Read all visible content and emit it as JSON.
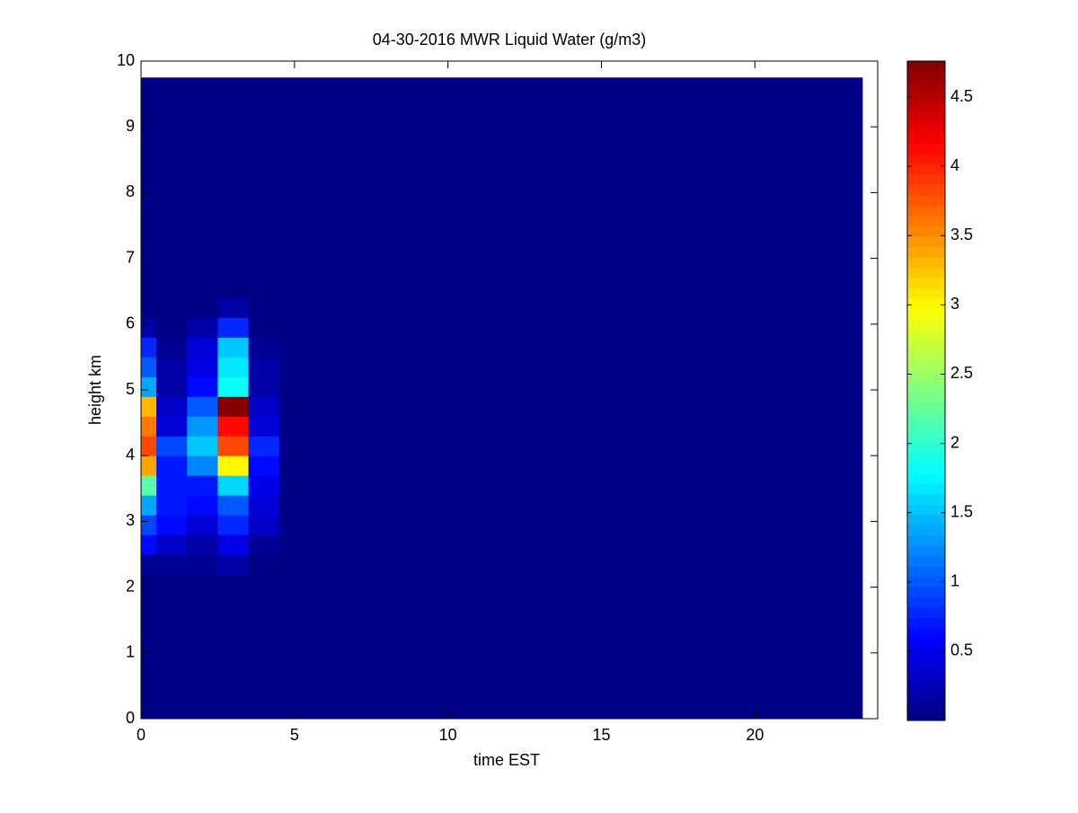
{
  "chart_data": {
    "type": "heatmap",
    "title": "04-30-2016 MWR Liquid Water (g/m3)",
    "x_label": "time EST",
    "y_label": "height km",
    "x_bins": [
      0,
      0.5,
      1.5,
      2.5,
      3.5,
      4.5,
      23.5
    ],
    "y_bins": [
      0,
      2.2,
      2.5,
      2.8,
      3.1,
      3.4,
      3.7,
      4.0,
      4.3,
      4.6,
      4.9,
      5.2,
      5.5,
      5.8,
      6.1,
      6.4,
      9.75
    ],
    "z": [
      [
        0,
        0.1,
        0.6,
        0.9,
        1.4,
        2.2,
        3.4,
        3.8,
        3.6,
        3.3,
        1.4,
        1.0,
        0.8,
        0.2,
        0,
        0
      ],
      [
        0,
        0.1,
        0.3,
        0.6,
        0.7,
        0.7,
        0.7,
        0.9,
        0.4,
        0.3,
        0.2,
        0.2,
        0.1,
        0.05,
        0,
        0
      ],
      [
        0,
        0.1,
        0.2,
        0.4,
        0.6,
        0.7,
        1.2,
        1.5,
        1.3,
        1.0,
        0.6,
        0.5,
        0.4,
        0.2,
        0,
        0
      ],
      [
        0,
        0.2,
        0.5,
        0.8,
        1.0,
        1.6,
        3.0,
        3.8,
        4.1,
        4.7,
        1.8,
        1.7,
        1.5,
        0.8,
        0.2,
        0
      ],
      [
        0,
        0,
        0.1,
        0.3,
        0.4,
        0.5,
        0.6,
        0.8,
        0.4,
        0.3,
        0.2,
        0.2,
        0.1,
        0,
        0,
        0
      ],
      [
        0,
        0,
        0,
        0,
        0,
        0,
        0,
        0,
        0,
        0,
        0,
        0,
        0,
        0,
        0,
        0
      ]
    ],
    "colormap": "jet",
    "clim": [
      0,
      4.76
    ],
    "cticks": [
      0.5,
      1,
      1.5,
      2,
      2.5,
      3,
      3.5,
      4,
      4.5
    ],
    "xlim": [
      0,
      24
    ],
    "xticks": [
      0,
      5,
      10,
      15,
      20
    ],
    "ylim": [
      0,
      10
    ],
    "yticks": [
      0,
      1,
      2,
      3,
      4,
      5,
      6,
      7,
      8,
      9,
      10
    ]
  }
}
